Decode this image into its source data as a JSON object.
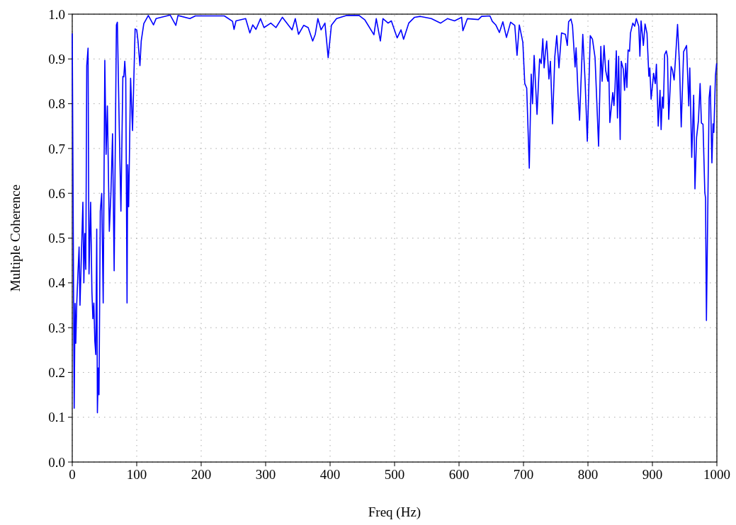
{
  "chart_data": {
    "type": "line",
    "xlabel": "Freq (Hz)",
    "ylabel": "Multiple Coherence",
    "xlim": [
      0,
      1000
    ],
    "ylim": [
      0,
      1
    ],
    "xticks": [
      0,
      100,
      200,
      300,
      400,
      500,
      600,
      700,
      800,
      900,
      1000
    ],
    "yticks": [
      {
        "value": 0,
        "label": "0.0"
      },
      {
        "value": 0.1,
        "label": "0.1"
      },
      {
        "value": 0.2,
        "label": "0.2"
      },
      {
        "value": 0.3,
        "label": "0.3"
      },
      {
        "value": 0.4,
        "label": "0.4"
      },
      {
        "value": 0.5,
        "label": "0.5"
      },
      {
        "value": 0.6,
        "label": "0.6"
      },
      {
        "value": 0.7,
        "label": "0.7"
      },
      {
        "value": 0.8,
        "label": "0.8"
      },
      {
        "value": 0.9,
        "label": "0.9"
      },
      {
        "value": 1,
        "label": "1.0"
      }
    ],
    "grid": true,
    "line_style": "solid",
    "x": [
      0,
      3,
      4.4,
      5.5,
      7,
      8.8,
      10.6,
      12,
      16.5,
      18,
      19.5,
      21,
      22.5,
      24.5,
      26,
      28.5,
      30.5,
      32,
      33.5,
      35,
      36.5,
      38,
      39,
      40.5,
      41.5,
      43.5,
      45.7,
      48,
      50.5,
      52.5,
      54.5,
      57.5,
      60,
      62.5,
      65,
      68.5,
      70,
      73,
      75.5,
      78.5,
      80,
      81.5,
      83,
      85,
      86,
      87.5,
      90.5,
      93.5,
      97.5,
      100,
      102,
      105,
      107,
      111,
      118,
      126,
      130,
      152,
      160.7,
      164,
      182.5,
      191,
      217,
      236,
      248.6,
      251,
      254,
      269,
      275.5,
      280,
      285,
      292,
      297.5,
      308,
      316,
      326,
      341,
      346,
      351,
      359,
      366,
      373,
      377,
      381,
      386,
      392,
      397,
      402,
      410,
      425,
      445,
      454,
      468,
      471.6,
      478,
      482,
      490,
      495,
      504,
      510,
      514,
      522,
      531,
      540,
      557,
      571.5,
      582,
      593,
      604,
      606,
      613,
      630,
      635,
      648,
      651.6,
      657,
      662.6,
      668,
      673.6,
      680,
      686.5,
      690,
      693.5,
      699,
      702,
      705,
      709,
      712,
      714,
      716.5,
      721,
      725,
      727.5,
      730,
      732,
      734,
      736,
      739.5,
      741.8,
      745,
      748.6,
      751.6,
      755,
      759,
      765,
      768,
      770,
      773.6,
      776,
      780,
      781.6,
      784.6,
      787,
      792,
      795.6,
      799,
      803.6,
      807,
      811,
      816.5,
      820,
      822,
      825,
      827.5,
      830.8,
      832,
      834,
      838.5,
      840.3,
      842,
      844,
      845.8,
      847.6,
      850,
      851.6,
      854.9,
      856.8,
      858.6,
      860.4,
      862.3,
      864.5,
      866,
      869.6,
      872.5,
      875,
      878.8,
      880.6,
      882.4,
      886,
      888.6,
      891.6,
      894.5,
      896,
      898,
      901.9,
      904.4,
      906.2,
      909,
      911.8,
      913.5,
      915.4,
      917,
      919,
      921.6,
      923.4,
      925.3,
      929,
      931,
      933.7,
      936,
      939,
      942,
      944.7,
      948.4,
      953,
      956.4,
      958,
      961,
      964,
      966,
      968.5,
      971.4,
      974,
      976,
      978.5,
      981.3,
      982.4,
      983.8,
      988,
      989.8,
      992.3,
      994,
      995.3,
      997.8,
      999.6
    ],
    "series": [
      {
        "color": "#0000ff",
        "values": [
          0.957,
          0.12,
          0.354,
          0.265,
          0.355,
          0.42,
          0.48,
          0.35,
          0.58,
          0.4,
          0.51,
          0.43,
          0.885,
          0.924,
          0.42,
          0.58,
          0.38,
          0.32,
          0.355,
          0.27,
          0.24,
          0.52,
          0.11,
          0.21,
          0.15,
          0.56,
          0.6,
          0.355,
          0.897,
          0.687,
          0.795,
          0.515,
          0.6,
          0.733,
          0.427,
          0.976,
          0.982,
          0.74,
          0.56,
          0.861,
          0.86,
          0.895,
          0.857,
          0.355,
          0.664,
          0.57,
          0.857,
          0.74,
          0.967,
          0.965,
          0.94,
          0.885,
          0.94,
          0.979,
          0.997,
          0.976,
          0.99,
          0.998,
          0.975,
          0.997,
          0.99,
          0.996,
          0.996,
          0.996,
          0.984,
          0.966,
          0.985,
          0.99,
          0.958,
          0.976,
          0.966,
          0.99,
          0.97,
          0.98,
          0.97,
          0.993,
          0.965,
          0.99,
          0.955,
          0.975,
          0.97,
          0.94,
          0.955,
          0.99,
          0.965,
          0.98,
          0.903,
          0.975,
          0.99,
          0.997,
          0.997,
          0.987,
          0.954,
          0.99,
          0.94,
          0.99,
          0.98,
          0.985,
          0.947,
          0.965,
          0.944,
          0.98,
          0.993,
          0.995,
          0.99,
          0.98,
          0.99,
          0.985,
          0.993,
          0.963,
          0.99,
          0.988,
          0.995,
          0.996,
          0.984,
          0.976,
          0.959,
          0.983,
          0.948,
          0.982,
          0.975,
          0.908,
          0.976,
          0.937,
          0.845,
          0.835,
          0.656,
          0.866,
          0.8,
          0.908,
          0.776,
          0.9,
          0.89,
          0.945,
          0.88,
          0.915,
          0.94,
          0.855,
          0.895,
          0.755,
          0.905,
          0.952,
          0.88,
          0.958,
          0.955,
          0.93,
          0.983,
          0.989,
          0.975,
          0.882,
          0.925,
          0.824,
          0.763,
          0.955,
          0.85,
          0.716,
          0.952,
          0.944,
          0.903,
          0.705,
          0.928,
          0.85,
          0.93,
          0.874,
          0.85,
          0.897,
          0.758,
          0.825,
          0.796,
          0.836,
          0.918,
          0.768,
          0.906,
          0.72,
          0.895,
          0.877,
          0.83,
          0.89,
          0.836,
          0.92,
          0.917,
          0.958,
          0.98,
          0.973,
          0.99,
          0.973,
          0.906,
          0.985,
          0.93,
          0.978,
          0.957,
          0.861,
          0.88,
          0.81,
          0.868,
          0.845,
          0.888,
          0.75,
          0.83,
          0.742,
          0.815,
          0.79,
          0.91,
          0.918,
          0.904,
          0.765,
          0.883,
          0.876,
          0.853,
          0.905,
          0.977,
          0.888,
          0.748,
          0.916,
          0.93,
          0.795,
          0.88,
          0.68,
          0.819,
          0.61,
          0.725,
          0.762,
          0.845,
          0.757,
          0.754,
          0.602,
          0.59,
          0.316,
          0.813,
          0.84,
          0.668,
          0.755,
          0.736,
          0.863,
          0.89
        ]
      }
    ]
  }
}
